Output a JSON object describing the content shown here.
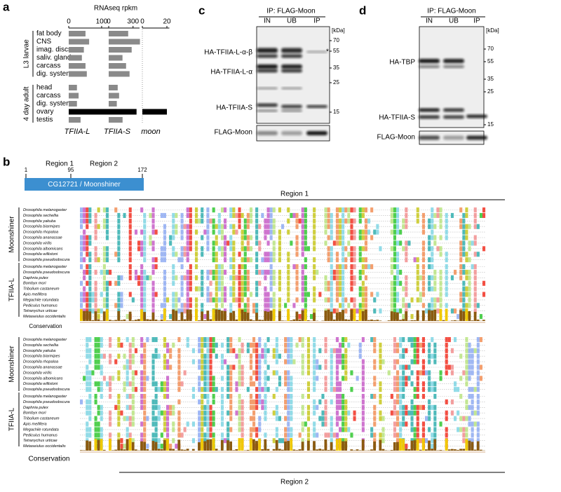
{
  "chart_data": [
    {
      "type": "bar",
      "orientation": "horizontal",
      "title": "RNAseq rpkm",
      "xlabel": "TFIIA-L",
      "categories": [
        "fat body",
        "CNS",
        "imag. discs",
        "saliv. gland",
        "carcass",
        "dig. system",
        "head",
        "carcass",
        "dig. system",
        "ovary",
        "testis"
      ],
      "groups": [
        {
          "label": "L3 larvae"
        },
        {
          "label": "4 day adult"
        }
      ],
      "values": [
        51,
        62,
        46,
        40,
        51,
        55,
        25,
        30,
        25,
        128,
        36
      ],
      "colors": [
        "#8a8a8a",
        "#8a8a8a",
        "#8a8a8a",
        "#8a8a8a",
        "#8a8a8a",
        "#8a8a8a",
        "#8a8a8a",
        "#8a8a8a",
        "#8a8a8a",
        "#000000",
        "#8a8a8a"
      ],
      "xlim": [
        0,
        130
      ],
      "xticks": [
        0,
        100
      ]
    },
    {
      "type": "bar",
      "orientation": "horizontal",
      "xlabel": "TFIIA-S",
      "values": [
        240,
        385,
        283,
        170,
        214,
        257,
        111,
        128,
        100,
        343,
        171
      ],
      "colors": [
        "#8a8a8a",
        "#8a8a8a",
        "#8a8a8a",
        "#8a8a8a",
        "#8a8a8a",
        "#8a8a8a",
        "#8a8a8a",
        "#8a8a8a",
        "#8a8a8a",
        "#000000",
        "#8a8a8a"
      ],
      "xlim": [
        0,
        380
      ],
      "xticks": [
        0,
        300
      ]
    },
    {
      "type": "bar",
      "orientation": "horizontal",
      "xlabel": "moon",
      "values": [
        0,
        0,
        0,
        0,
        0,
        0,
        0,
        0,
        0,
        20,
        0
      ],
      "colors": [
        "#8a8a8a",
        "#8a8a8a",
        "#8a8a8a",
        "#8a8a8a",
        "#8a8a8a",
        "#8a8a8a",
        "#8a8a8a",
        "#8a8a8a",
        "#8a8a8a",
        "#000000",
        "#8a8a8a"
      ],
      "xlim": [
        0,
        22
      ],
      "xticks": [
        0,
        20
      ]
    }
  ],
  "panel_labels": [
    "a",
    "b",
    "c",
    "d"
  ],
  "blots": [
    {
      "title": "IP: FLAG-Moon",
      "lanes": [
        "IN",
        "UB",
        "IP"
      ],
      "unit": "[kDa]",
      "markers": [
        70,
        55,
        35,
        25,
        15
      ],
      "proteins": [
        "HA-TFIIA-L-α-β",
        "HA-TFIIA-L-α",
        "HA-TFIIA-S",
        "FLAG-Moon"
      ],
      "annotation": "*"
    },
    {
      "title": "IP: FLAG-Moon",
      "lanes": [
        "IN",
        "UB",
        "IP"
      ],
      "unit": "[kDa]",
      "markers": [
        70,
        55,
        35,
        25,
        15
      ],
      "proteins": [
        "HA-TBP",
        "HA-TFIIA-S",
        "FLAG-Moon"
      ]
    }
  ],
  "gene": {
    "start": 1,
    "boundary": 95,
    "end": 172,
    "regions": [
      "Region 1",
      "Region 2"
    ],
    "name": "CG12721 / Moonshiner"
  },
  "alignment": {
    "titles": [
      "Region 1",
      "Region 2"
    ],
    "groups": [
      "Moonshiner",
      "TFIIA-L"
    ],
    "conservation_labels": [
      "Conservation",
      "Conservation"
    ],
    "species": [
      "Drosophila melanogaster",
      "Drosophila sechellia",
      "Drosophila yakuba",
      "Drosophila biarmipes",
      "Drosophila rhopaloa",
      "Drosophila ananassae",
      "Drosophila virilis",
      "Drosophila albomicans",
      "Drosophila willistoni",
      "Drosophila pseudoobscura",
      "Drosophila melanogaster",
      "Drosophila pseudoobscura",
      "Daphnia pulex",
      "Bombyx mori",
      "Tribolium castaneum",
      "Apis mellifera",
      "Megachile rotundata",
      "Pediculus humanus",
      "Tetranychus urticae",
      "Metaseiulus occidentalis"
    ]
  }
}
